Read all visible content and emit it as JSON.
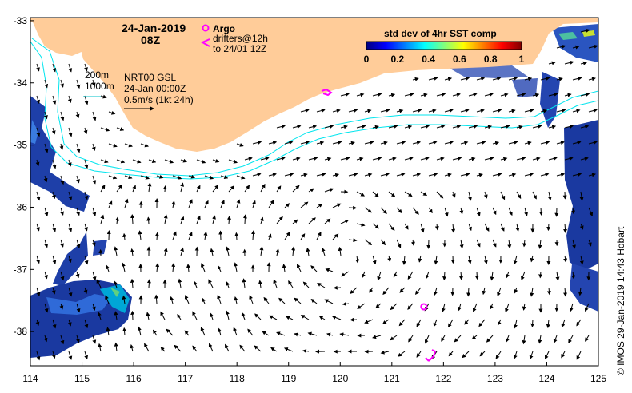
{
  "map": {
    "date": "24-Jan-2019",
    "hour": "08Z",
    "legend": {
      "argo_label": "Argo",
      "drifters_label": "drifters@12h",
      "drifters_sub": "to 24/01 12Z",
      "argo_color": "#ff00ff"
    },
    "isobaths": {
      "label_200": "200m",
      "label_1000": "1000m",
      "color": "#00e5ee"
    },
    "product": {
      "line1": "NRT00 GSL",
      "line2": "24-Jan 00:00Z",
      "line3": "0.5m/s (1kt 24h)"
    },
    "colorbar": {
      "title": "std dev of 4hr SST comp",
      "ticks": [
        "0",
        "0.2",
        "0.4",
        "0.6",
        "0.8",
        "1"
      ],
      "colors": [
        "#00007f",
        "#0000ff",
        "#007fff",
        "#00ffff",
        "#7fff7f",
        "#ffff00",
        "#ff7f00",
        "#ff0000",
        "#7f0000"
      ]
    },
    "axes": {
      "lon_ticks": [
        "114",
        "115",
        "116",
        "117",
        "118",
        "119",
        "120",
        "121",
        "122",
        "123",
        "124",
        "125"
      ],
      "lat_ticks": [
        "-33",
        "-34",
        "-35",
        "-36",
        "-37",
        "-38"
      ],
      "lon_range": [
        114,
        125
      ],
      "lat_range": [
        -38.55,
        -32.95
      ]
    },
    "credit": "© IMOS 29-Jan-2019 14:43 Hobart",
    "land_color": "#ffcc99",
    "argo_floats": [
      {
        "lon": 121.62,
        "lat": -37.6
      }
    ]
  }
}
